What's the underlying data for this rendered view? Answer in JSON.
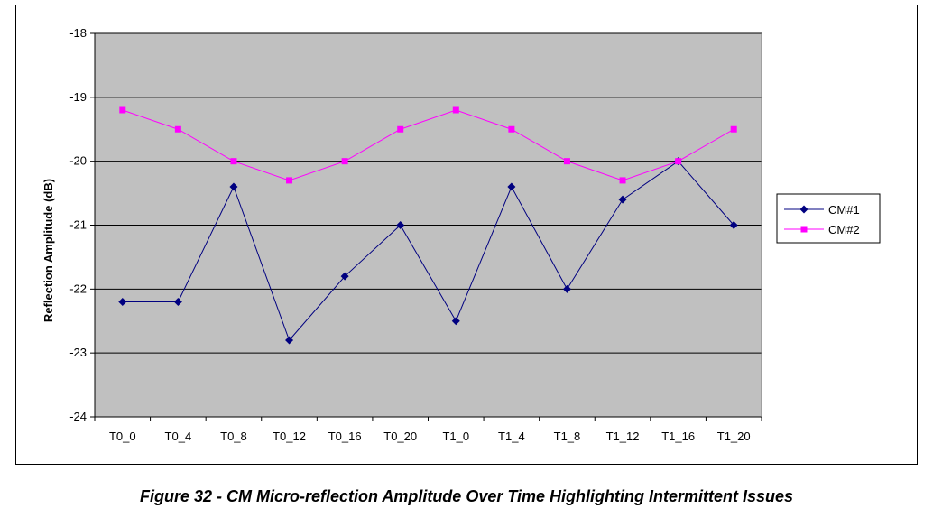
{
  "caption": "Figure 32 - CM Micro-reflection Amplitude Over Time Highlighting Intermittent Issues",
  "chart_data": {
    "type": "line",
    "title": "",
    "xlabel": "",
    "ylabel": "Reflection Amplitude (dB)",
    "ylim": [
      -24,
      -18
    ],
    "yticks": [
      -18,
      -19,
      -20,
      -21,
      -22,
      -23,
      -24
    ],
    "grid": true,
    "legend_position": "right",
    "plot_background": "#c0c0c0",
    "categories": [
      "T0_0",
      "T0_4",
      "T0_8",
      "T0_12",
      "T0_16",
      "T0_20",
      "T1_0",
      "T1_4",
      "T1_8",
      "T1_12",
      "T1_16",
      "T1_20"
    ],
    "series": [
      {
        "name": "CM#1",
        "color": "#000080",
        "marker": "diamond",
        "values": [
          -22.2,
          -22.2,
          -20.4,
          -22.8,
          -21.8,
          -21.0,
          -22.5,
          -20.4,
          -22.0,
          -20.6,
          -20.0,
          -21.0
        ]
      },
      {
        "name": "CM#2",
        "color": "#ff00ff",
        "marker": "square",
        "values": [
          -19.2,
          -19.5,
          -20.0,
          -20.3,
          -20.0,
          -19.5,
          -19.2,
          -19.5,
          -20.0,
          -20.3,
          -20.0,
          -19.5
        ]
      }
    ]
  }
}
